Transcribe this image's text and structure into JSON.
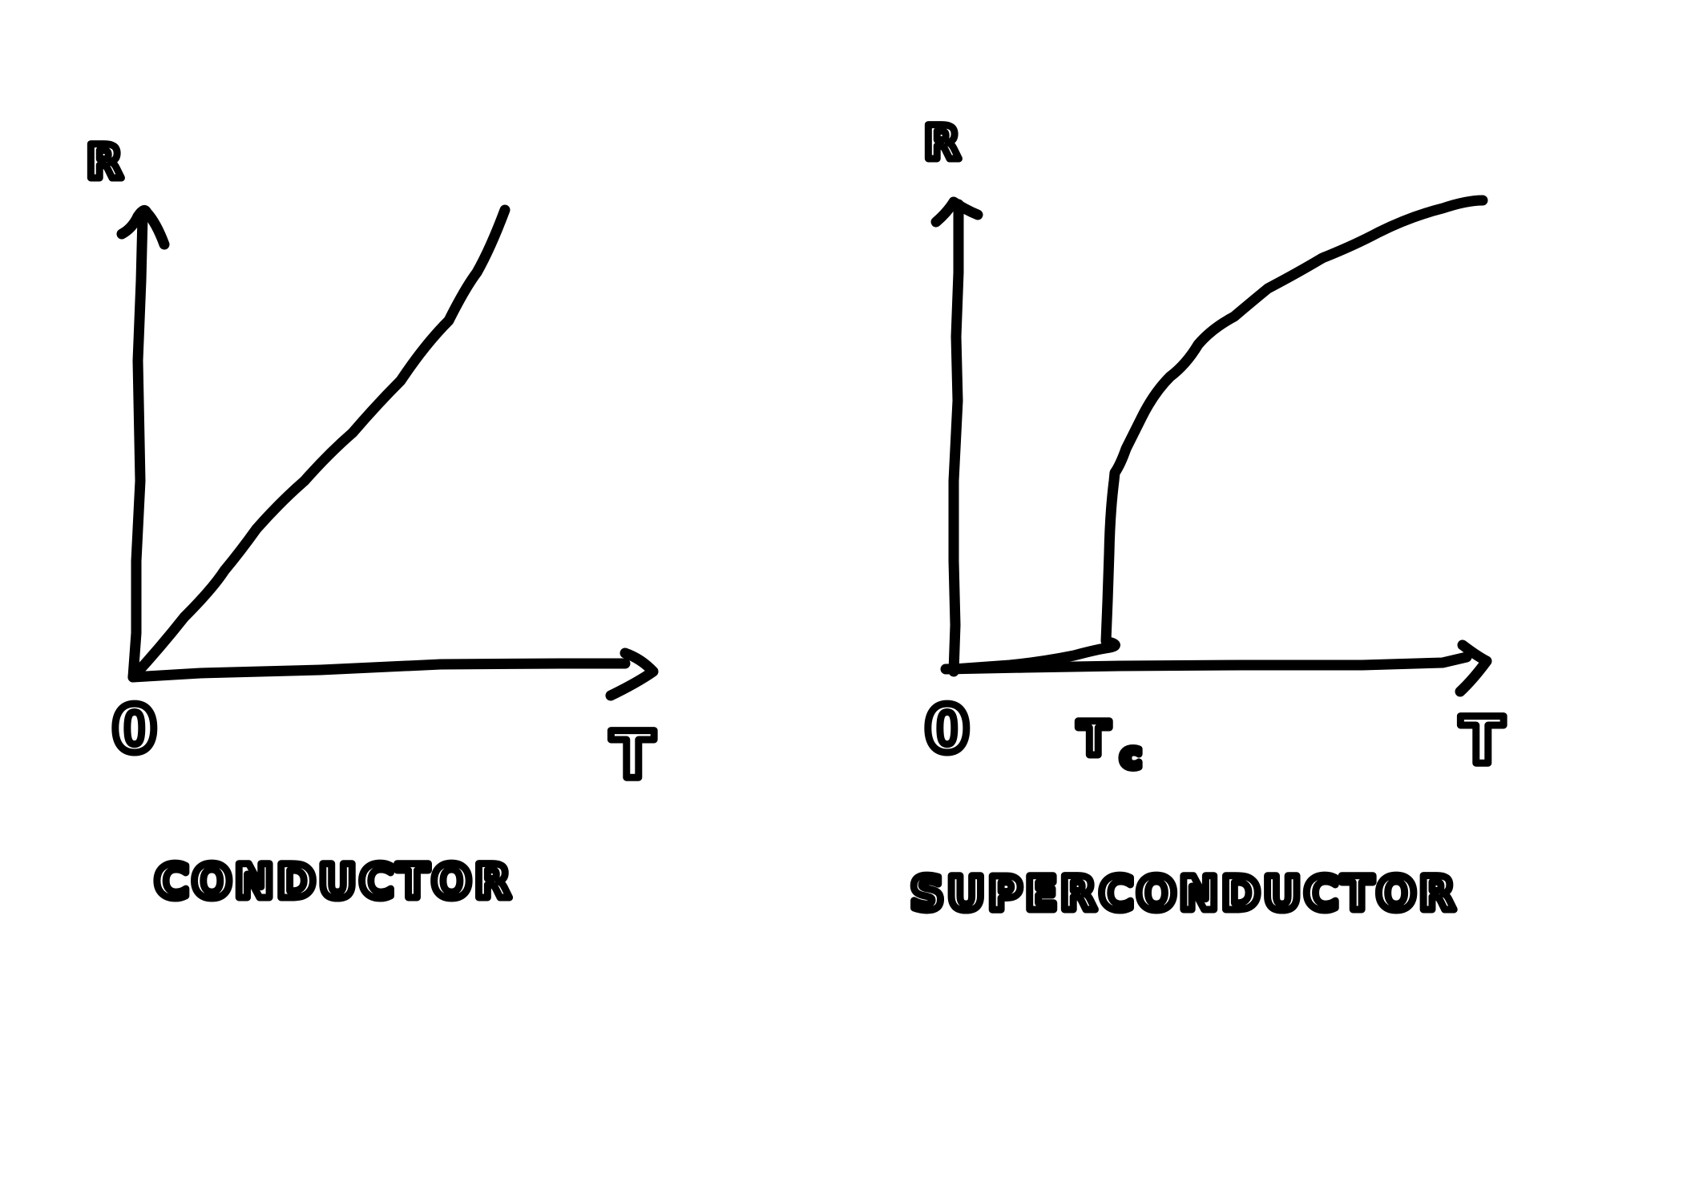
{
  "left_graph": {
    "y_axis_label": "R",
    "x_axis_label": "T",
    "origin_label": "0",
    "caption": "CONDUCTOR"
  },
  "right_graph": {
    "y_axis_label": "R",
    "x_axis_label": "T",
    "origin_label": "0",
    "critical_temp_label": "T",
    "critical_temp_subscript": "c",
    "caption": "SUPERCONDUCTOR"
  },
  "chart_data": [
    {
      "type": "line",
      "title": "",
      "xlabel": "T",
      "ylabel": "R",
      "x_ticks": [
        "0"
      ],
      "series": [
        {
          "x": [
            0,
            0.2,
            0.4,
            0.6,
            0.8,
            1.0
          ],
          "y": [
            0,
            0.18,
            0.36,
            0.54,
            0.72,
            0.9
          ]
        }
      ],
      "annotations": [
        "CONDUCTOR"
      ],
      "grid": false
    },
    {
      "type": "line",
      "title": "",
      "xlabel": "T",
      "ylabel": "R",
      "x_ticks": [
        "0",
        "Tc"
      ],
      "series": [
        {
          "x": [
            0,
            0.3,
            0.3,
            0.45,
            0.6,
            0.8,
            1.0
          ],
          "y": [
            0,
            0,
            0.46,
            0.62,
            0.74,
            0.85,
            0.91
          ]
        }
      ],
      "annotations": [
        "SUPERCONDUCTOR"
      ],
      "grid": false
    }
  ]
}
